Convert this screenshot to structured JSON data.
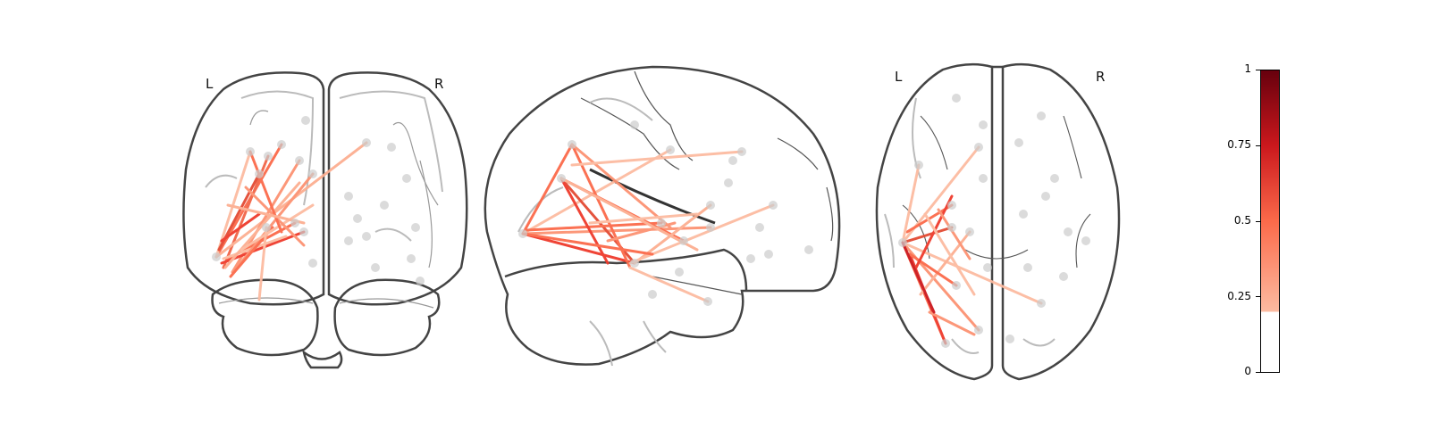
{
  "labels": {
    "coronal_left": "L",
    "coronal_right": "R",
    "axial_left": "L",
    "axial_right": "R"
  },
  "colorbar": {
    "colormap": "Reds",
    "threshold": 0.2,
    "ticks": [
      "0",
      "0.25",
      "0.5",
      "0.75",
      "1"
    ],
    "colors": {
      "light": "#fcbba1",
      "mid": "#fb6a4a",
      "dark": "#cb181d",
      "darkest": "#67000d"
    }
  },
  "brain_outline_color": "#444444",
  "node_color": "#cccccc"
}
